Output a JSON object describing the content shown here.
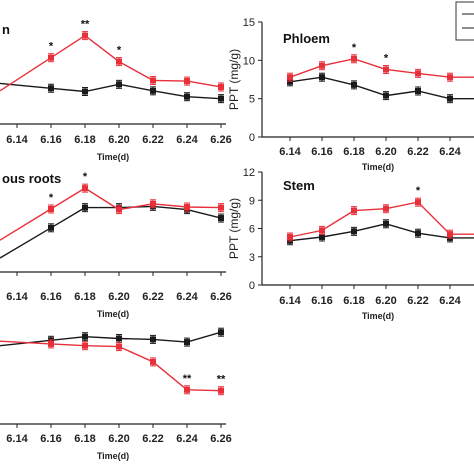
{
  "colors": {
    "control": "#1a1a1a",
    "treatment": "#e8303a"
  },
  "chart_data": [
    {
      "type": "line",
      "title": "n",
      "xlabel": "Time(d)",
      "categories": [
        "6.14",
        "6.16",
        "6.18",
        "6.20",
        "6.22",
        "6.24",
        "6.26",
        "6.28"
      ],
      "series": [
        {
          "values": [
            null,
            5.5,
            5.0,
            6.1,
            5.1,
            4.2,
            3.9,
            3.0
          ]
        },
        {
          "values": [
            null,
            10.2,
            13.6,
            9.6,
            6.7,
            6.6,
            5.7,
            5.8
          ]
        }
      ],
      "significance": [
        "",
        "*",
        "**",
        "*",
        "",
        "",
        "",
        ""
      ]
    },
    {
      "type": "line",
      "title": "Phloem",
      "xlabel": "Time(d)",
      "ylabel": "PPT (mg/g)",
      "ylim": [
        0,
        15
      ],
      "yticks": [
        0,
        5,
        10,
        15
      ],
      "categories": [
        "6.14",
        "6.16",
        "6.18",
        "6.20",
        "6.22",
        "6.24"
      ],
      "series": [
        {
          "values": [
            7.2,
            7.8,
            6.8,
            5.4,
            6.0,
            5.0
          ]
        },
        {
          "values": [
            7.8,
            9.3,
            10.2,
            8.8,
            8.3,
            7.8
          ]
        }
      ],
      "significance": [
        "",
        "",
        "*",
        "*",
        "",
        ""
      ]
    },
    {
      "type": "line",
      "title": "ous roots",
      "xlabel": "Time(d)",
      "categories": [
        "6.14",
        "6.16",
        "6.18",
        "6.20",
        "6.22",
        "6.24",
        "6.26",
        "6.28"
      ],
      "series": [
        {
          "values": [
            null,
            6.8,
            9.9,
            9.9,
            10.1,
            9.6,
            8.3,
            10.0
          ]
        },
        {
          "values": [
            null,
            9.7,
            12.9,
            9.6,
            10.5,
            10.0,
            9.9,
            7.7
          ]
        }
      ],
      "significance": [
        "",
        "*",
        "*",
        "",
        "",
        "",
        "",
        ""
      ]
    },
    {
      "type": "line",
      "title": "Stem",
      "xlabel": "Time(d)",
      "ylabel": "PPT (mg/g)",
      "ylim": [
        0,
        12
      ],
      "yticks": [
        0,
        3,
        6,
        9,
        12
      ],
      "categories": [
        "6.14",
        "6.16",
        "6.18",
        "6.20",
        "6.22",
        "6.24"
      ],
      "series": [
        {
          "values": [
            4.7,
            5.1,
            5.7,
            6.5,
            5.5,
            5.0
          ]
        },
        {
          "values": [
            5.1,
            5.8,
            7.9,
            8.1,
            8.8,
            5.4
          ]
        }
      ],
      "significance": [
        "",
        "",
        "",
        "",
        "*",
        ""
      ]
    },
    {
      "type": "line",
      "title": "",
      "xlabel": "Time(d)",
      "categories": [
        "6.14",
        "6.16",
        "6.18",
        "6.20",
        "6.22",
        "6.24",
        "6.26",
        "6.28"
      ],
      "series": [
        {
          "values": [
            null,
            9.3,
            9.7,
            9.5,
            9.4,
            9.1,
            10.2,
            9.6
          ]
        },
        {
          "values": [
            null,
            8.9,
            8.7,
            8.6,
            6.9,
            3.8,
            3.7,
            4.5
          ]
        }
      ],
      "significance": [
        "",
        "",
        "",
        "",
        "",
        "**",
        "**",
        "**"
      ]
    }
  ]
}
